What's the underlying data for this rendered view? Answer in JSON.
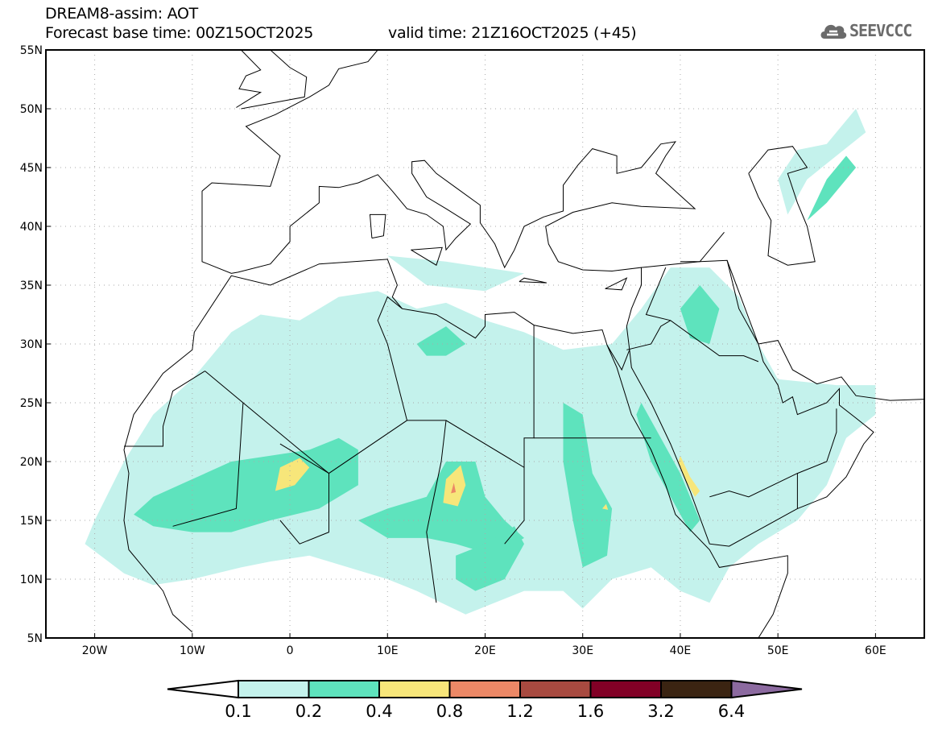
{
  "header": {
    "title": "DREAM8-assim: AOT",
    "base_time": "Forecast base time: 00Z15OCT2025",
    "valid_time": "valid time: 21Z16OCT2025 (+45)"
  },
  "logo": {
    "text": "SEEVCCC",
    "icon": "cloud-icon"
  },
  "map": {
    "lon_range": [
      -25,
      65
    ],
    "lat_range": [
      5,
      55
    ],
    "lon_ticks": [
      {
        "v": -20,
        "label": "20W"
      },
      {
        "v": -10,
        "label": "10W"
      },
      {
        "v": 0,
        "label": "0"
      },
      {
        "v": 10,
        "label": "10E"
      },
      {
        "v": 20,
        "label": "20E"
      },
      {
        "v": 30,
        "label": "30E"
      },
      {
        "v": 40,
        "label": "40E"
      },
      {
        "v": 50,
        "label": "50E"
      },
      {
        "v": 60,
        "label": "60E"
      }
    ],
    "lat_ticks": [
      {
        "v": 55,
        "label": "55N"
      },
      {
        "v": 50,
        "label": "50N"
      },
      {
        "v": 45,
        "label": "45N"
      },
      {
        "v": 40,
        "label": "40N"
      },
      {
        "v": 35,
        "label": "35N"
      },
      {
        "v": 30,
        "label": "30N"
      },
      {
        "v": 25,
        "label": "25N"
      },
      {
        "v": 20,
        "label": "20N"
      },
      {
        "v": 15,
        "label": "15N"
      },
      {
        "v": 10,
        "label": "10N"
      },
      {
        "v": 5,
        "label": "5N"
      }
    ]
  },
  "colorbar": {
    "levels": [
      "0.1",
      "0.2",
      "0.4",
      "0.8",
      "1.2",
      "1.6",
      "3.2",
      "6.4"
    ],
    "colors": [
      "#ffffff",
      "#c4f2ec",
      "#5ee3bd",
      "#f7e67a",
      "#ec8866",
      "#a84a40",
      "#820026",
      "#3b2412",
      "#8c6aa0"
    ]
  }
}
